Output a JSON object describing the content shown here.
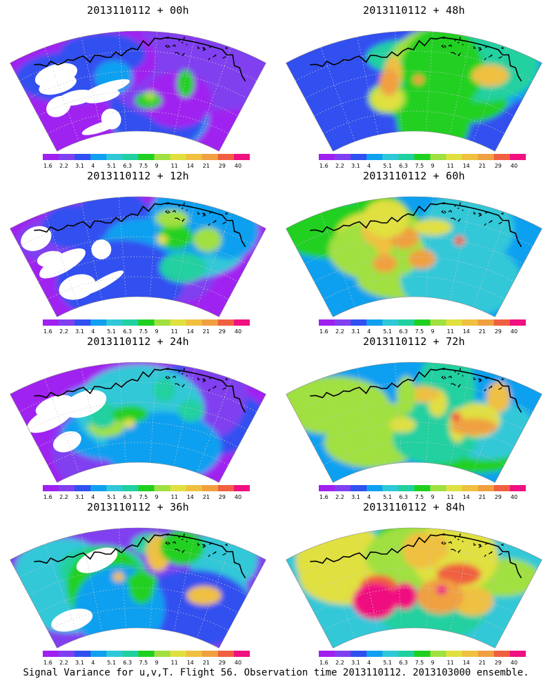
{
  "caption": "Signal Variance for u,v,T. Flight 56. Observation time 2013110112. 2013103000 ensemble.",
  "colorbar": {
    "labels": [
      "1.6",
      "2.2",
      "3.1",
      "4",
      "5.1",
      "6.3",
      "7.5",
      "9",
      "11",
      "14",
      "21",
      "29",
      "40"
    ],
    "colors": [
      "#a020f0",
      "#8040f0",
      "#3050f0",
      "#10a0f0",
      "#30c8d8",
      "#20d0a0",
      "#20d020",
      "#a0e040",
      "#e0e040",
      "#f0c040",
      "#f0a040",
      "#f06040",
      "#f01080"
    ]
  },
  "panels": [
    {
      "title": "2013110112 + 00h",
      "lead_hours": 0
    },
    {
      "title": "2013110112 + 48h",
      "lead_hours": 48
    },
    {
      "title": "2013110112 + 12h",
      "lead_hours": 12
    },
    {
      "title": "2013110112 + 60h",
      "lead_hours": 60
    },
    {
      "title": "2013110112 + 24h",
      "lead_hours": 24
    },
    {
      "title": "2013110112 + 72h",
      "lead_hours": 72
    },
    {
      "title": "2013110112 + 36h",
      "lead_hours": 36
    },
    {
      "title": "2013110112 + 84h",
      "lead_hours": 84
    }
  ],
  "chart_data": {
    "type": "heatmap",
    "title": "Signal Variance for u,v,T",
    "levels": [
      1.6,
      2.2,
      3.1,
      4,
      5.1,
      6.3,
      7.5,
      9,
      11,
      14,
      21,
      29,
      40
    ],
    "lead_times_h": [
      0,
      12,
      24,
      36,
      48,
      60,
      72,
      84
    ],
    "grid": true
  }
}
